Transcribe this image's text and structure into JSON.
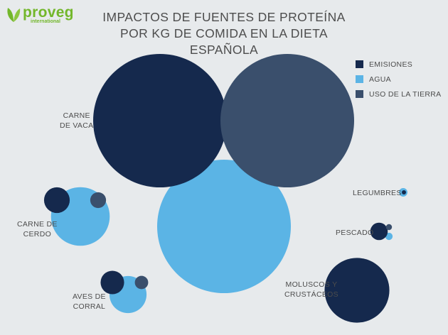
{
  "brand": {
    "name": "proveg",
    "sub": "international"
  },
  "chart_data": {
    "type": "bubble",
    "title_lines": [
      "IMPACTOS DE FUENTES DE PROTEÍNA",
      "POR KG DE COMIDA EN LA DIETA ESPAÑOLA"
    ],
    "legend_placement": "top-right",
    "series": [
      {
        "name": "EMISIONES",
        "color": "#15294d"
      },
      {
        "name": "AGUA",
        "color": "#5bb4e5"
      },
      {
        "name": "USO DE LA TIERRA",
        "color": "#3a4f6c"
      }
    ],
    "categories": [
      {
        "label_lines": [
          "CARNE",
          "DE VACA"
        ],
        "values": {
          "emisiones": 1,
          "agua": 1,
          "uso_tierra": 1
        }
      },
      {
        "label_lines": [
          "CARNE DE",
          "CERDO"
        ],
        "values": {
          "emisiones": 0.037,
          "agua": 0.193,
          "uso_tierra": 0.014
        }
      },
      {
        "label_lines": [
          "AVES DE",
          "CORRAL"
        ],
        "values": {
          "emisiones": 0.031,
          "agua": 0.077,
          "uso_tierra": 0.01
        }
      },
      {
        "label_lines": [
          "LEGUMBRES"
        ],
        "values": {
          "emisiones": 0.001,
          "agua": 0.004,
          "uso_tierra": 0.0
        }
      },
      {
        "label_lines": [
          "PESCADO"
        ],
        "values": {
          "emisiones": 0.017,
          "agua": 0.003,
          "uso_tierra": 0.002
        }
      },
      {
        "label_lines": [
          "MOLUSCOS Y",
          "CRUSTÁCEOS"
        ],
        "values": {
          "emisiones": 0.235,
          "agua": 0.006,
          "uso_tierra": 0.0
        }
      }
    ]
  }
}
